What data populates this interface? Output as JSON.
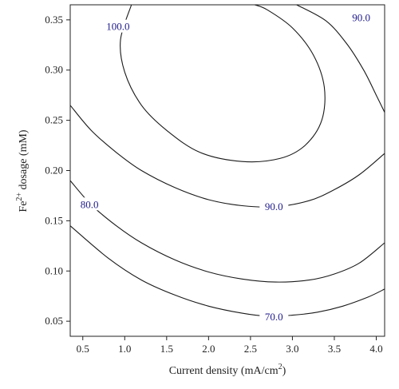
{
  "chart_data": {
    "type": "contour",
    "xlabel": "Current density (mA/cm",
    "xlabel_sup": "2",
    "xlabel_end": ")",
    "ylabel": "Fe",
    "ylabel_sup": "2+",
    "ylabel_end": " dosage (mM)",
    "xlim": [
      0.35,
      4.1
    ],
    "ylim": [
      0.035,
      0.365
    ],
    "xticks": [
      "0.5",
      "1.0",
      "1.5",
      "2.0",
      "2.5",
      "3.0",
      "3.5",
      "4.0"
    ],
    "yticks": [
      "0.05",
      "0.10",
      "0.15",
      "0.20",
      "0.25",
      "0.30",
      "0.35"
    ],
    "colors": {
      "line": "#1a1a1a",
      "label": "#1f1a8c",
      "axis": "#222222"
    },
    "contours": [
      {
        "level": 70.0,
        "label": "70.0",
        "label_at": [
          2.78,
          0.054
        ],
        "points": [
          [
            0.35,
            0.145
          ],
          [
            0.8,
            0.113
          ],
          [
            1.2,
            0.091
          ],
          [
            1.6,
            0.076
          ],
          [
            2.0,
            0.065
          ],
          [
            2.4,
            0.058
          ],
          [
            2.7,
            0.055
          ],
          [
            3.0,
            0.056
          ],
          [
            3.3,
            0.059
          ],
          [
            3.6,
            0.065
          ],
          [
            3.9,
            0.074
          ],
          [
            4.1,
            0.082
          ]
        ]
      },
      {
        "level": 80.0,
        "label": "80.0",
        "label_at": [
          0.58,
          0.166
        ],
        "points": [
          [
            0.35,
            0.19
          ],
          [
            0.6,
            0.166
          ],
          [
            0.9,
            0.145
          ],
          [
            1.2,
            0.128
          ],
          [
            1.6,
            0.111
          ],
          [
            2.0,
            0.099
          ],
          [
            2.4,
            0.092
          ],
          [
            2.8,
            0.089
          ],
          [
            3.2,
            0.091
          ],
          [
            3.5,
            0.097
          ],
          [
            3.8,
            0.108
          ],
          [
            4.1,
            0.128
          ]
        ]
      },
      {
        "level": 90.0,
        "label": "90.0",
        "label_at": [
          2.78,
          0.164
        ],
        "points": [
          [
            0.35,
            0.265
          ],
          [
            0.6,
            0.24
          ],
          [
            0.9,
            0.218
          ],
          [
            1.2,
            0.2
          ],
          [
            1.6,
            0.183
          ],
          [
            2.0,
            0.171
          ],
          [
            2.4,
            0.165
          ],
          [
            2.8,
            0.164
          ],
          [
            3.2,
            0.17
          ],
          [
            3.5,
            0.181
          ],
          [
            3.8,
            0.196
          ],
          [
            4.1,
            0.217
          ]
        ]
      },
      {
        "level": 90.0,
        "label": "90.0",
        "label_at": [
          3.82,
          0.352
        ],
        "points": [
          [
            3.05,
            0.365
          ],
          [
            3.4,
            0.349
          ],
          [
            3.65,
            0.326
          ],
          [
            3.85,
            0.3
          ],
          [
            4.0,
            0.275
          ],
          [
            4.1,
            0.258
          ]
        ]
      },
      {
        "level": 100.0,
        "label": "100.0",
        "label_at": [
          0.92,
          0.343
        ],
        "points": [
          [
            1.08,
            0.365
          ],
          [
            0.95,
            0.33
          ],
          [
            1.0,
            0.298
          ],
          [
            1.2,
            0.265
          ],
          [
            1.5,
            0.24
          ],
          [
            1.9,
            0.218
          ],
          [
            2.4,
            0.209
          ],
          [
            2.85,
            0.212
          ],
          [
            3.15,
            0.225
          ],
          [
            3.35,
            0.25
          ],
          [
            3.38,
            0.283
          ],
          [
            3.25,
            0.315
          ],
          [
            3.0,
            0.342
          ],
          [
            2.7,
            0.36
          ],
          [
            2.55,
            0.365
          ]
        ]
      }
    ]
  }
}
